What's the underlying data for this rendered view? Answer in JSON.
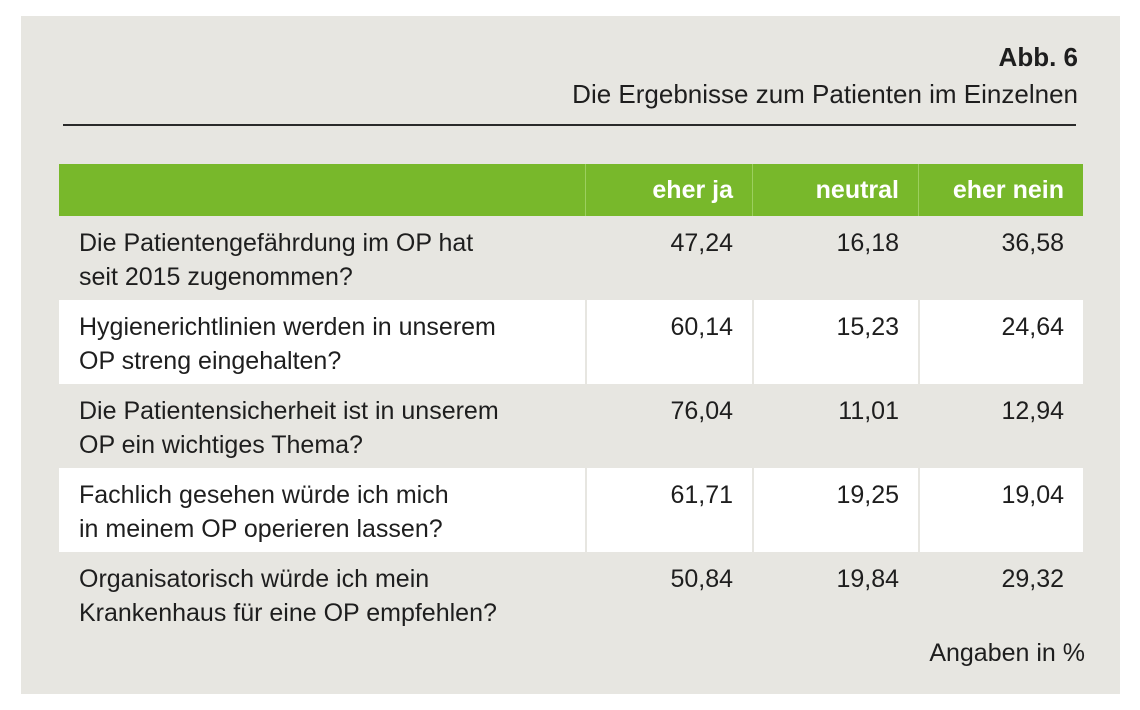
{
  "figure": {
    "number": "Abb. 6",
    "title": "Die Ergebnisse zum Patienten im Einzelnen",
    "footnote": "Angaben in %"
  },
  "colors": {
    "header_green": "#78b82b",
    "panel_grey": "#e7e6e1",
    "row_white": "#ffffff"
  },
  "chart_data": {
    "type": "table",
    "unit": "%",
    "columns": [
      "",
      "eher ja",
      "neutral",
      "eher nein"
    ],
    "rows": [
      {
        "label_line1": "Die Patientengefährdung im OP hat",
        "label_line2": "seit 2015 zugenommen?",
        "values": [
          "47,24",
          "16,18",
          "36,58"
        ]
      },
      {
        "label_line1": "Hygienerichtlinien werden in unserem",
        "label_line2": "OP streng eingehalten?",
        "values": [
          "60,14",
          "15,23",
          "24,64"
        ]
      },
      {
        "label_line1": "Die Patientensicherheit ist in unserem",
        "label_line2": "OP ein wichtiges Thema?",
        "values": [
          "76,04",
          "11,01",
          "12,94"
        ]
      },
      {
        "label_line1": "Fachlich gesehen würde ich mich",
        "label_line2": "in meinem OP operieren lassen?",
        "values": [
          "61,71",
          "19,25",
          "19,04"
        ]
      },
      {
        "label_line1": "Organisatorisch würde ich mein",
        "label_line2": "Krankenhaus für eine OP empfehlen?",
        "values": [
          "50,84",
          "19,84",
          "29,32"
        ]
      }
    ]
  }
}
